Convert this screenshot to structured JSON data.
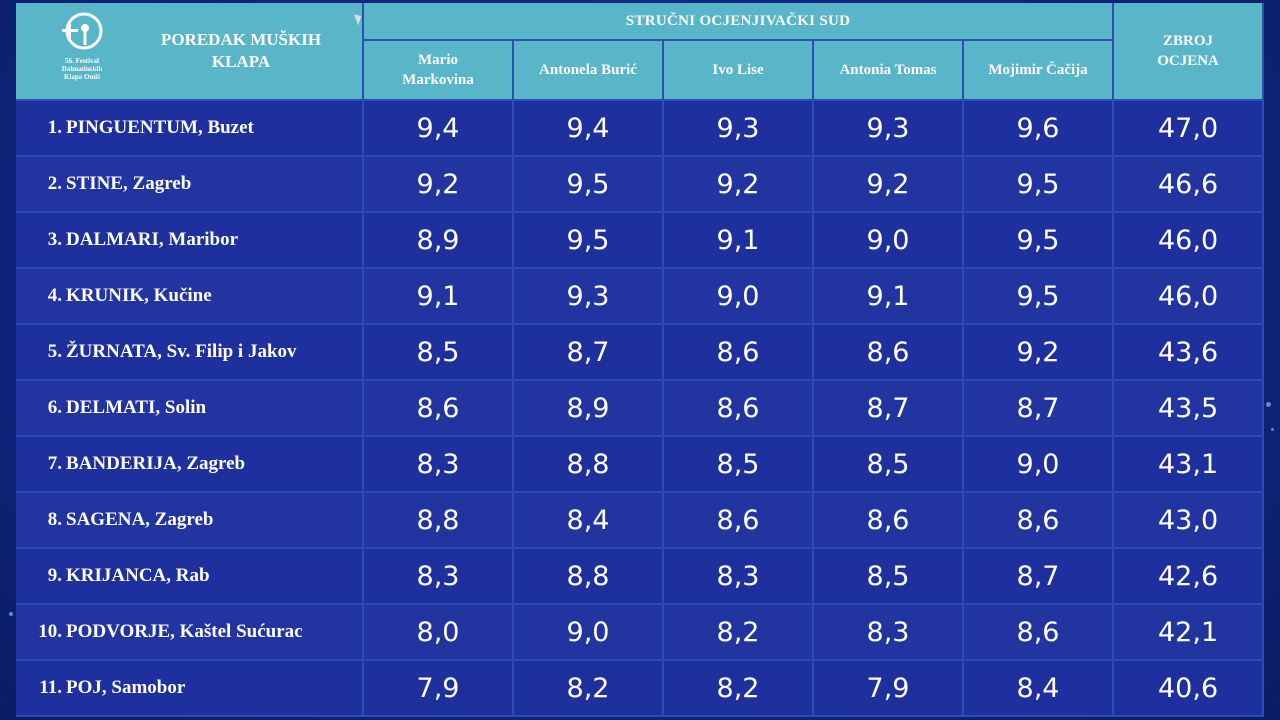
{
  "header": {
    "logo_text": [
      "56. Festival",
      "Dalmatinskih",
      "Klapa Omiš"
    ],
    "title": [
      "POREDAK MUŠKIH",
      "KLAPA"
    ],
    "jury_label": "STRUČNI OCJENJIVAČKI SUD",
    "judges": [
      [
        "Mario",
        "Markovina"
      ],
      [
        "Antonela Burić"
      ],
      [
        "Ivo Lise"
      ],
      [
        "Antonia Tomas"
      ],
      [
        "Mojimir Čačija"
      ]
    ],
    "total_label": [
      "ZBROJ",
      "OCJENA"
    ]
  },
  "rows": [
    {
      "rank": "1.",
      "name": "PINGUENTUM, Buzet",
      "scores": [
        "9,4",
        "9,4",
        "9,3",
        "9,3",
        "9,6"
      ],
      "total": "47,0"
    },
    {
      "rank": "2.",
      "name": "STINE, Zagreb",
      "scores": [
        "9,2",
        "9,5",
        "9,2",
        "9,2",
        "9,5"
      ],
      "total": "46,6"
    },
    {
      "rank": "3.",
      "name": "DALMARI, Maribor",
      "scores": [
        "8,9",
        "9,5",
        "9,1",
        "9,0",
        "9,5"
      ],
      "total": "46,0"
    },
    {
      "rank": "4.",
      "name": "KRUNIK, Kučine",
      "scores": [
        "9,1",
        "9,3",
        "9,0",
        "9,1",
        "9,5"
      ],
      "total": "46,0"
    },
    {
      "rank": "5.",
      "name": "ŽURNATA, Sv. Filip i Jakov",
      "scores": [
        "8,5",
        "8,7",
        "8,6",
        "8,6",
        "9,2"
      ],
      "total": "43,6"
    },
    {
      "rank": "6.",
      "name": "DELMATI, Solin",
      "scores": [
        "8,6",
        "8,9",
        "8,6",
        "8,7",
        "8,7"
      ],
      "total": "43,5"
    },
    {
      "rank": "7.",
      "name": "BANDERIJA, Zagreb",
      "scores": [
        "8,3",
        "8,8",
        "8,5",
        "8,5",
        "9,0"
      ],
      "total": "43,1"
    },
    {
      "rank": "8.",
      "name": "SAGENA, Zagreb",
      "scores": [
        "8,8",
        "8,4",
        "8,6",
        "8,6",
        "8,6"
      ],
      "total": "43,0"
    },
    {
      "rank": "9.",
      "name": "KRIJANCA, Rab",
      "scores": [
        "8,3",
        "8,8",
        "8,3",
        "8,5",
        "8,7"
      ],
      "total": "42,6"
    },
    {
      "rank": "10.",
      "name": "PODVORJE, Kaštel Sućurac",
      "scores": [
        "8,0",
        "9,0",
        "8,2",
        "8,3",
        "8,6"
      ],
      "total": "42,1"
    },
    {
      "rank": "11.",
      "name": "POJ, Samobor",
      "scores": [
        "7,9",
        "8,2",
        "8,2",
        "7,9",
        "8,4"
      ],
      "total": "40,6"
    }
  ]
}
